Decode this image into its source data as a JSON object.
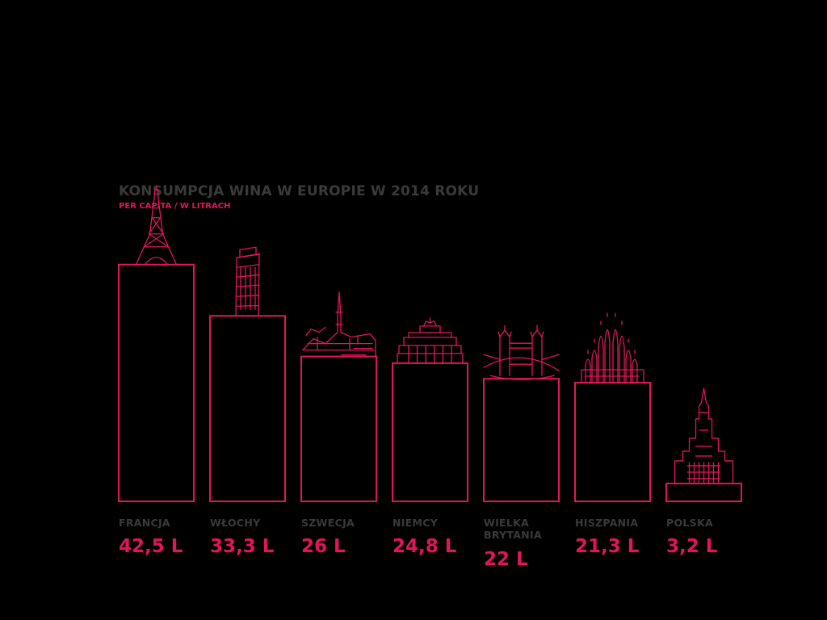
{
  "colors": {
    "background": "#000000",
    "accent": "#e3155a",
    "muted": "#3a3a3a"
  },
  "chart_data": {
    "type": "bar",
    "title": "KONSUMPCJA WINA W EUROPIE W 2014 ROKU",
    "subtitle": "PER CAPITA / W LITRACH",
    "categories": [
      [
        "FRANCJA"
      ],
      [
        "WŁOCHY"
      ],
      [
        "SZWECJA"
      ],
      [
        "NIEMCY"
      ],
      [
        "WIELKA",
        "BRYTANIA"
      ],
      [
        "HISZPANIA"
      ],
      [
        "POLSKA"
      ]
    ],
    "values": [
      42.5,
      33.3,
      26,
      24.8,
      22,
      21.3,
      3.2
    ],
    "value_labels": [
      "42,5 L",
      "33,3 L",
      "26 L",
      "24,8 L",
      "22 L",
      "21,3 L",
      "3,2 L"
    ],
    "unit": "L",
    "landmarks": [
      "eiffel-tower-icon",
      "leaning-tower-pisa-icon",
      "stockholm-city-hall-icon",
      "brandenburg-gate-icon",
      "tower-bridge-icon",
      "sagrada-familia-icon",
      "palace-of-culture-icon"
    ],
    "grid": false,
    "legend": "none"
  }
}
